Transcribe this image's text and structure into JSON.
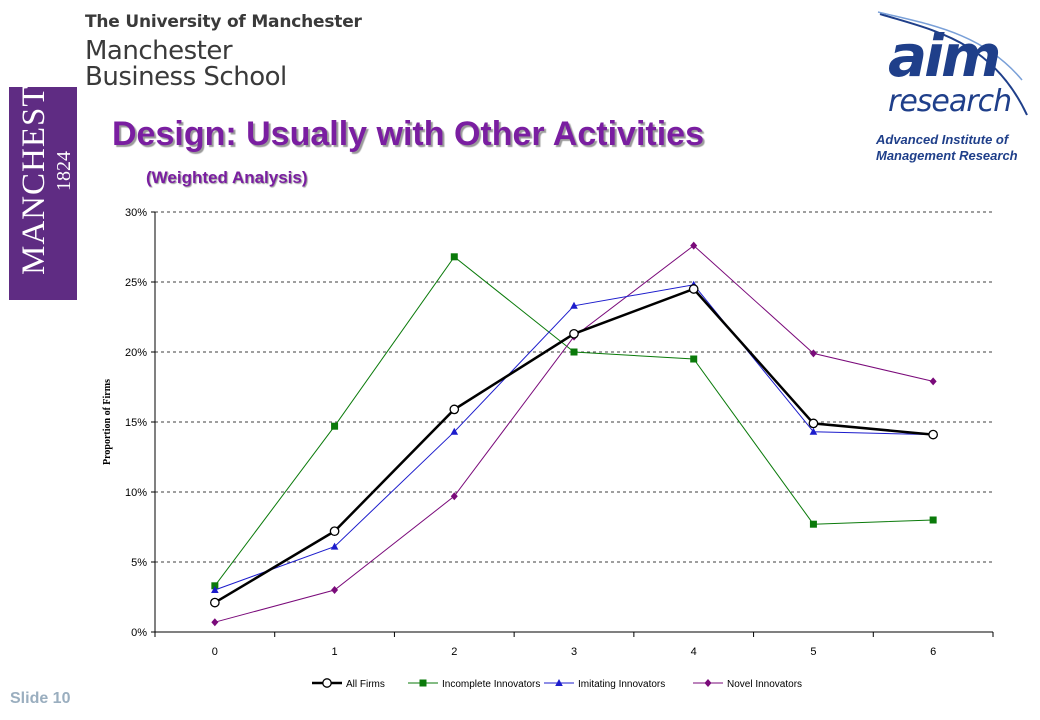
{
  "header": {
    "line1": "The University of Manchester",
    "line2": "Manchester",
    "line3": "Business School"
  },
  "crest": {
    "name": "MANCHESTER",
    "year": "1824"
  },
  "aim_logo": {
    "mark": "aim",
    "word": "research",
    "line1": "Advanced Institute of",
    "line2": "Management Research"
  },
  "slide": {
    "title": "Design: Usually with Other Activities",
    "subtitle": "(Weighted Analysis)",
    "number": "Slide 10"
  },
  "chart_data": {
    "type": "line",
    "ylabel": "Proportion of Firms",
    "xlabel": "",
    "categories": [
      "0",
      "1",
      "2",
      "3",
      "4",
      "5",
      "6"
    ],
    "ylim": [
      0,
      30
    ],
    "y_ticks": [
      "0%",
      "5%",
      "10%",
      "15%",
      "20%",
      "25%",
      "30%"
    ],
    "grid": "horizontal dashed",
    "legend_position": "bottom",
    "series": [
      {
        "name": "All Firms",
        "color": "#000000",
        "marker": "circle",
        "values": [
          2.1,
          7.2,
          15.9,
          21.3,
          24.5,
          14.9,
          14.1
        ]
      },
      {
        "name": "Incomplete Innovators",
        "color": "#0a7a0a",
        "marker": "square",
        "values": [
          3.3,
          14.7,
          26.8,
          20.0,
          19.5,
          7.7,
          8.0
        ]
      },
      {
        "name": "Imitating Innovators",
        "color": "#1c1ccc",
        "marker": "triangle",
        "values": [
          3.0,
          6.1,
          14.3,
          23.3,
          24.8,
          14.3,
          14.1
        ]
      },
      {
        "name": "Novel Innovators",
        "color": "#7a0a7a",
        "marker": "diamond",
        "values": [
          0.7,
          3.0,
          9.7,
          21.1,
          27.6,
          19.9,
          17.9
        ]
      }
    ]
  }
}
